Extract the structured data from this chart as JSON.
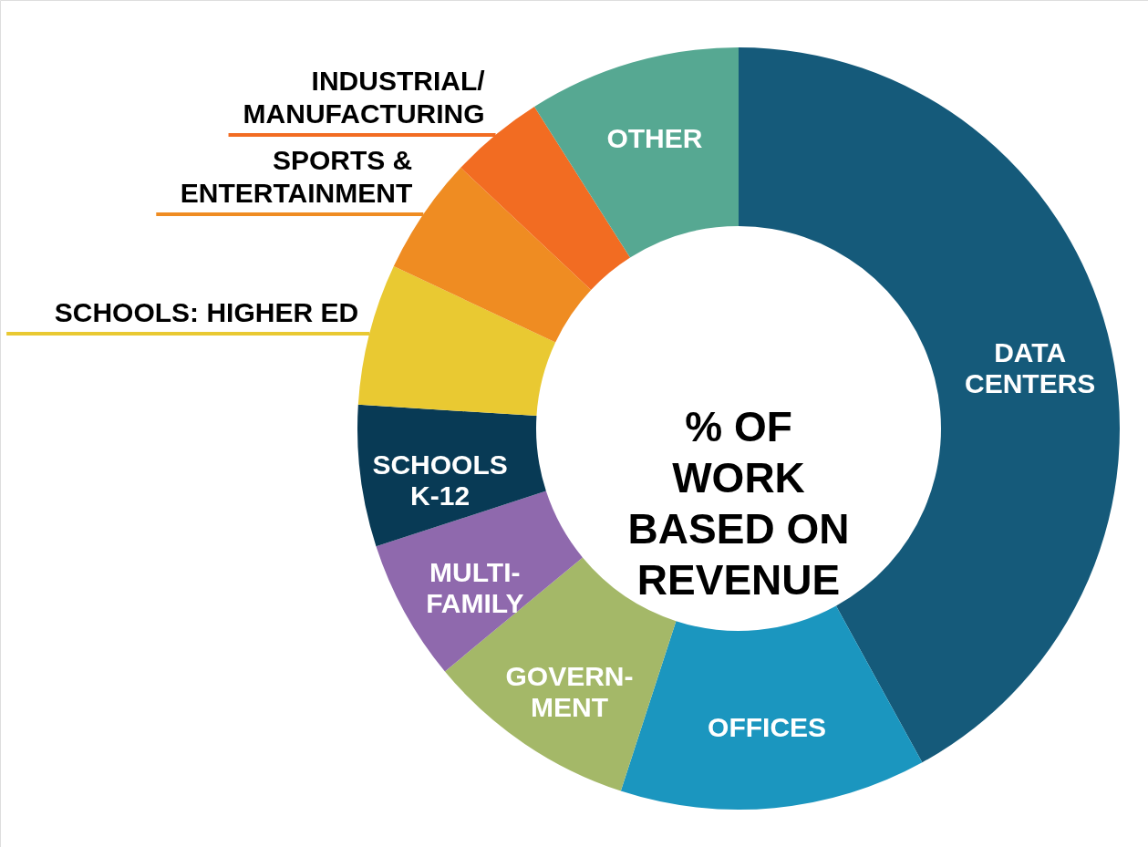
{
  "chart_data": {
    "type": "donut",
    "title": "% OF\nWORK\nBASED ON\nREVENUE",
    "categories": [
      "DATA\nCENTERS",
      "OFFICES",
      "GOVERN-\nMENT",
      "MULTI-\nFAMILY",
      "SCHOOLS\nK-12",
      "SCHOOLS: HIGHER ED",
      "SPORTS &\nENTERTAINMENT",
      "INDUSTRIAL/\nMANUFACTURING",
      "OTHER"
    ],
    "values": [
      42,
      13,
      9,
      6,
      6,
      6,
      5,
      4,
      9
    ],
    "colors": [
      "#155a7a",
      "#1b96bf",
      "#a4b868",
      "#8f69ad",
      "#083a55",
      "#e9c932",
      "#ef8c22",
      "#f26c22",
      "#56a892"
    ]
  }
}
